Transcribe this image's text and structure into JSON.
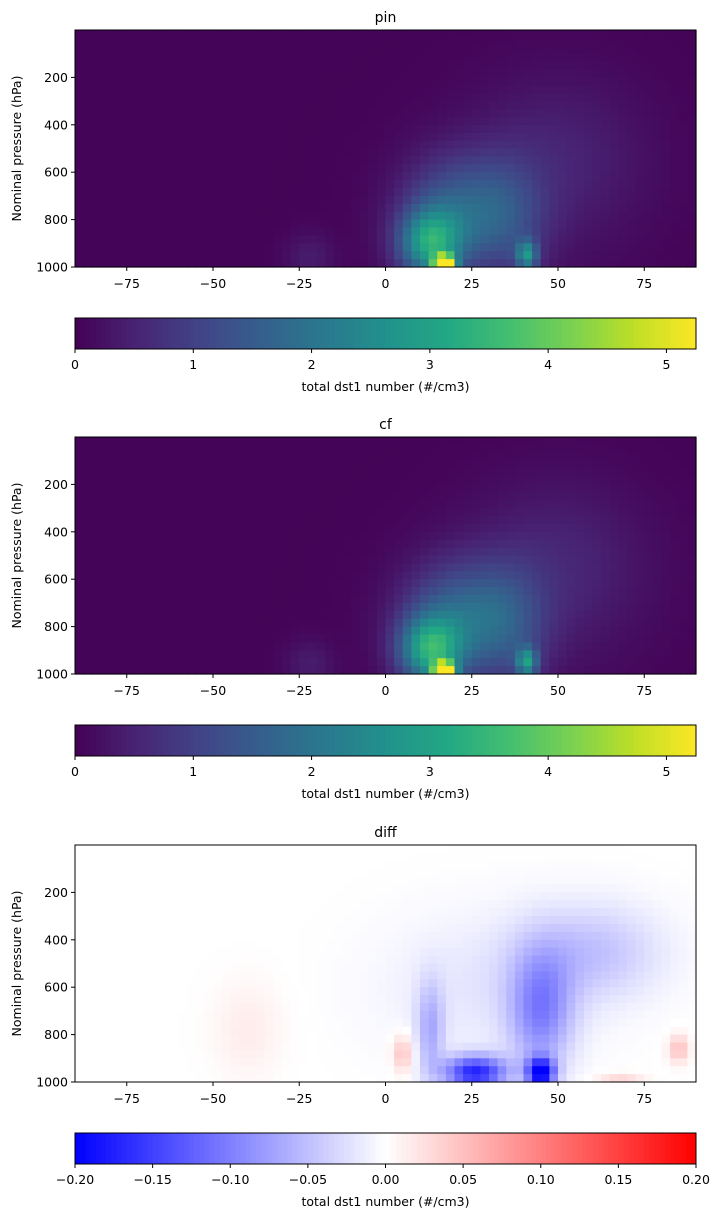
{
  "chart_data": [
    {
      "type": "heatmap",
      "title": "pin",
      "xlabel": "",
      "ylabel": "Nominal pressure (hPa)",
      "xlim": [
        -90,
        90
      ],
      "ylim": [
        1000,
        0
      ],
      "xticks": [
        -75,
        -50,
        -25,
        0,
        25,
        50,
        75
      ],
      "yticks": [
        200,
        400,
        600,
        800,
        1000
      ],
      "colormap": "viridis",
      "colorbar": {
        "label": "total dst1 number (#/cm3)",
        "range": [
          0,
          5.25
        ],
        "ticks": [
          0,
          1,
          2,
          3,
          4,
          5
        ],
        "tick_labels": [
          "0",
          "1",
          "2",
          "3",
          "4",
          "5"
        ]
      },
      "background_level": 0.05,
      "features": [
        {
          "lat": 17,
          "p": 985,
          "sx": 3,
          "sp": 35,
          "amp": 5.1
        },
        {
          "lat": 13,
          "p": 900,
          "sx": 9,
          "sp": 140,
          "amp": 2.6
        },
        {
          "lat": 20,
          "p": 760,
          "sx": 15,
          "sp": 230,
          "amp": 1.3
        },
        {
          "lat": 41,
          "p": 950,
          "sx": 3,
          "sp": 60,
          "amp": 2.1
        },
        {
          "lat": 35,
          "p": 800,
          "sx": 12,
          "sp": 250,
          "amp": 0.9
        },
        {
          "lat": 50,
          "p": 550,
          "sx": 25,
          "sp": 350,
          "amp": 0.45
        },
        {
          "lat": -22,
          "p": 960,
          "sx": 7,
          "sp": 100,
          "amp": 0.35
        }
      ]
    },
    {
      "type": "heatmap",
      "title": "cf",
      "xlabel": "",
      "ylabel": "Nominal pressure (hPa)",
      "xlim": [
        -90,
        90
      ],
      "ylim": [
        1000,
        0
      ],
      "xticks": [
        -75,
        -50,
        -25,
        0,
        25,
        50,
        75
      ],
      "yticks": [
        200,
        400,
        600,
        800,
        1000
      ],
      "colormap": "viridis",
      "colorbar": {
        "label": "total dst1 number (#/cm3)",
        "range": [
          0,
          5.25
        ],
        "ticks": [
          0,
          1,
          2,
          3,
          4,
          5
        ],
        "tick_labels": [
          "0",
          "1",
          "2",
          "3",
          "4",
          "5"
        ]
      },
      "background_level": 0.05,
      "features": [
        {
          "lat": 17,
          "p": 985,
          "sx": 3,
          "sp": 35,
          "amp": 5.2
        },
        {
          "lat": 13,
          "p": 900,
          "sx": 9,
          "sp": 140,
          "amp": 2.7
        },
        {
          "lat": 20,
          "p": 760,
          "sx": 15,
          "sp": 230,
          "amp": 1.4
        },
        {
          "lat": 41,
          "p": 950,
          "sx": 3,
          "sp": 60,
          "amp": 2.2
        },
        {
          "lat": 35,
          "p": 800,
          "sx": 12,
          "sp": 250,
          "amp": 1.0
        },
        {
          "lat": 50,
          "p": 550,
          "sx": 25,
          "sp": 350,
          "amp": 0.5
        },
        {
          "lat": -22,
          "p": 960,
          "sx": 7,
          "sp": 100,
          "amp": 0.35
        }
      ]
    },
    {
      "type": "heatmap",
      "title": "diff",
      "xlabel": "",
      "ylabel": "Nominal pressure (hPa)",
      "xlim": [
        -90,
        90
      ],
      "ylim": [
        1000,
        0
      ],
      "xticks": [
        -75,
        -50,
        -25,
        0,
        25,
        50,
        75
      ],
      "yticks": [
        200,
        400,
        600,
        800,
        1000
      ],
      "colormap": "bwr",
      "colorbar": {
        "label": "total dst1 number (#/cm3)",
        "range": [
          -0.2,
          0.2
        ],
        "ticks": [
          -0.2,
          -0.15,
          -0.1,
          -0.05,
          0,
          0.05,
          0.1,
          0.15,
          0.2
        ],
        "tick_labels": [
          "−0.20",
          "−0.15",
          "−0.10",
          "−0.05",
          "0.00",
          "0.05",
          "0.10",
          "0.15",
          "0.20"
        ]
      },
      "background_level": 0,
      "features": [
        {
          "lat": 45,
          "p": 960,
          "sx": 4,
          "sp": 60,
          "amp": -0.2
        },
        {
          "lat": 26,
          "p": 960,
          "sx": 9,
          "sp": 70,
          "amp": -0.17
        },
        {
          "lat": 45,
          "p": 700,
          "sx": 9,
          "sp": 250,
          "amp": -0.09
        },
        {
          "lat": 60,
          "p": 450,
          "sx": 20,
          "sp": 200,
          "amp": -0.045
        },
        {
          "lat": 13,
          "p": 780,
          "sx": 4,
          "sp": 200,
          "amp": -0.06
        },
        {
          "lat": 30,
          "p": 600,
          "sx": 30,
          "sp": 300,
          "amp": -0.02
        },
        {
          "lat": 5,
          "p": 880,
          "sx": 3,
          "sp": 80,
          "amp": 0.05
        },
        {
          "lat": -40,
          "p": 780,
          "sx": 10,
          "sp": 200,
          "amp": 0.015
        },
        {
          "lat": 85,
          "p": 860,
          "sx": 3,
          "sp": 60,
          "amp": 0.05
        },
        {
          "lat": 68,
          "p": 985,
          "sx": 7,
          "sp": 25,
          "amp": 0.03
        }
      ]
    }
  ]
}
